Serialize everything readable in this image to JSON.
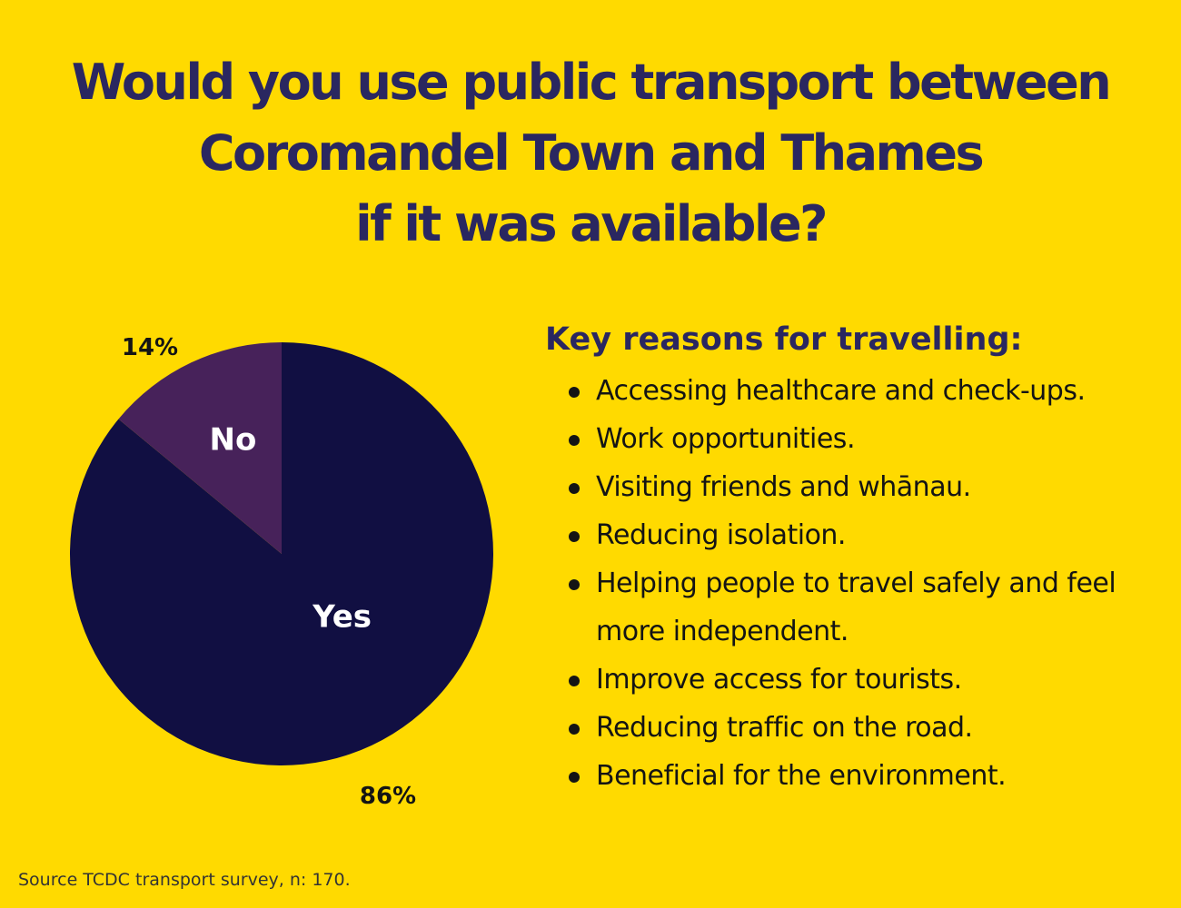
{
  "title": {
    "line1": "Would you use public transport between",
    "line2": "Coromandel Town and Thames",
    "line3": "if it was available?"
  },
  "chart_data": {
    "type": "pie",
    "slices": [
      {
        "label": "Yes",
        "value": 86,
        "percent_label": "86%",
        "color": "#110F42"
      },
      {
        "label": "No",
        "value": 14,
        "percent_label": "14%",
        "color": "#47225A"
      }
    ]
  },
  "reasons": {
    "heading": "Key reasons for travelling:",
    "items": [
      "Accessing healthcare and check-ups.",
      "Work opportunities.",
      "Visiting friends and whānau.",
      "Reducing isolation.",
      "Helping people to travel safely and feel more independent.",
      "Improve access for tourists.",
      "Reducing traffic on the road.",
      "Beneficial for the environment."
    ]
  },
  "source": "Source TCDC transport survey, n: 170.",
  "colors": {
    "background": "#FFDA00",
    "title": "#2A2760",
    "text": "#141414"
  }
}
